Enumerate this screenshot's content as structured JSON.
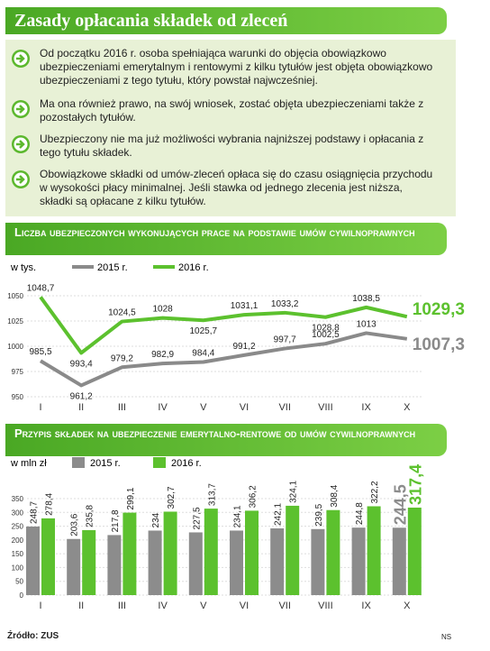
{
  "title": "Zasady opłacania składek od zleceń",
  "bullets": [
    "Od początku 2016 r. osoba spełniająca warunki do objęcia obowiązkowo ubezpieczeniami emerytalnym i rentowymi z kilku tytułów jest objęta obowiązkowo ubezpieczeniami z tego tytułu, który powstał najwcześniej.",
    "Ma ona również prawo, na swój wniosek, zostać objęta ubezpieczeniami także z pozostałych tytułów.",
    "Ubezpieczony nie ma już możliwości wybrania najniższej podstawy i opłacania z tego tytułu składek.",
    "Obowiązkowe składki od umów-zleceń opłaca się do czasu osiągnięcia przychodu w wysokości płacy minimalnej. Jeśli stawka od jednego zlecenia jest niższa, składki są opłacane z kilku tytułów."
  ],
  "chart_data": [
    {
      "type": "line",
      "title": "Liczba ubezpieczonych wykonujących prace na podstawie umów cywilnoprawnych",
      "unit_label": "w tys.",
      "categories": [
        "I",
        "II",
        "III",
        "IV",
        "V",
        "VI",
        "VII",
        "VIII",
        "IX",
        "X"
      ],
      "series": [
        {
          "name": "2015 r.",
          "color": "#8a8a8a",
          "values": [
            985.5,
            961.2,
            979.2,
            982.9,
            984.4,
            991.2,
            997.7,
            1002.5,
            1013,
            1007.3
          ],
          "value_labels": [
            "985,5",
            "961,2",
            "979,2",
            "982,9",
            "984,4",
            "991,2",
            "997,7",
            "1002,5",
            "1013",
            "1007,3"
          ]
        },
        {
          "name": "2016 r.",
          "color": "#5cc12e",
          "values": [
            1048.7,
            993.4,
            1024.5,
            1028,
            1025.7,
            1031.1,
            1033.2,
            1028.8,
            1038.5,
            1029.3
          ],
          "value_labels": [
            "1048,7",
            "993,4",
            "1024,5",
            "1028",
            "1025,7",
            "1031,1",
            "1033,2",
            "1028,8",
            "1038,5",
            "1029,3"
          ]
        }
      ],
      "ylim": [
        950,
        1050
      ],
      "yticks": [
        950,
        975,
        1000,
        1025,
        1050
      ],
      "grid": true
    },
    {
      "type": "bar",
      "title": "Przypis składek na ubezpieczenie emerytalno-rentowe od umów cywilnoprawnych",
      "unit_label": "w mln zł",
      "categories": [
        "I",
        "II",
        "III",
        "IV",
        "V",
        "VI",
        "VII",
        "VIII",
        "IX",
        "X"
      ],
      "series": [
        {
          "name": "2015 r.",
          "color": "#8c8c8c",
          "values": [
            248.7,
            203.6,
            217.8,
            234,
            227.5,
            234.1,
            242.1,
            239.5,
            244.8,
            244.5
          ],
          "value_labels": [
            "248,7",
            "203,6",
            "217,8",
            "234",
            "227,5",
            "234,1",
            "242,1",
            "239,5",
            "244,8",
            "244,5"
          ]
        },
        {
          "name": "2016 r.",
          "color": "#5cc12e",
          "values": [
            278.4,
            235.8,
            299.1,
            302.7,
            313.7,
            306.2,
            324.1,
            308.4,
            322.2,
            317.4
          ],
          "value_labels": [
            "278,4",
            "235,8",
            "299,1",
            "302,7",
            "313,7",
            "306,2",
            "324,1",
            "308,4",
            "322,2",
            "317,4"
          ]
        }
      ],
      "ylim": [
        0,
        350
      ],
      "yticks": [
        0,
        50,
        100,
        150,
        200,
        250,
        300,
        350
      ],
      "grid": true
    }
  ],
  "source": "Źródło: ZUS",
  "logo": "NS"
}
